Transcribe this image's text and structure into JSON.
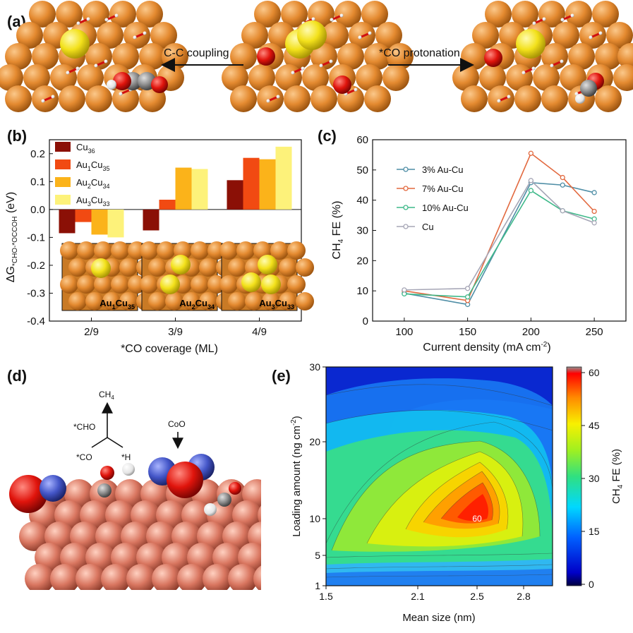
{
  "panel_a": {
    "label": "(a)",
    "arrow_left_label": "C-C coupling",
    "arrow_right_label": "*CO protonation"
  },
  "panel_d": {
    "label": "(d)",
    "ch4": "CH",
    "ch4_sub": "4",
    "cho": "*CHO",
    "co": "*CO",
    "h": "*H",
    "coo": "CoO"
  },
  "chart_data": [
    {
      "id": "b",
      "panel_label": "(b)",
      "type": "bar",
      "xlabel": "*CO coverage (ML)",
      "ylabel_base": "ΔG",
      "ylabel_sub": "*CHO-*OCCOH",
      "ylabel_unit": " (eV)",
      "categories": [
        "2/9",
        "3/9",
        "4/9"
      ],
      "ylim": [
        -0.4,
        0.25
      ],
      "yticks": [
        "0.2",
        "0.1",
        "0.0",
        "-0.1",
        "-0.2",
        "-0.3",
        "-0.4"
      ],
      "ytick_values": [
        0.2,
        0.1,
        0.0,
        -0.1,
        -0.2,
        -0.3,
        -0.4
      ],
      "series": [
        {
          "name_base": "Cu",
          "name_sub": "36",
          "color": "#8b1006",
          "values": [
            -0.085,
            -0.075,
            0.105
          ]
        },
        {
          "name_base": "Au",
          "name_sub": "1",
          "name_base2": "Cu",
          "name_sub2": "35",
          "color": "#f14a12",
          "values": [
            -0.045,
            0.035,
            0.185
          ]
        },
        {
          "name_base": "Au",
          "name_sub": "2",
          "name_base2": "Cu",
          "name_sub2": "34",
          "color": "#fbb31a",
          "values": [
            -0.09,
            0.15,
            0.18
          ]
        },
        {
          "name_base": "Au",
          "name_sub": "3",
          "name_base2": "Cu",
          "name_sub2": "33",
          "color": "#fdf27a",
          "values": [
            -0.1,
            0.145,
            0.225
          ]
        }
      ],
      "insets": [
        {
          "base": "Au",
          "sub": "1",
          "base2": "Cu",
          "sub2": "35"
        },
        {
          "base": "Au",
          "sub": "2",
          "base2": "Cu",
          "sub2": "34"
        },
        {
          "base": "Au",
          "sub": "3",
          "base2": "Cu",
          "sub2": "33"
        }
      ]
    },
    {
      "id": "c",
      "panel_label": "(c)",
      "type": "line",
      "xlabel_base": "Current density (mA cm",
      "xlabel_sup": "-2",
      "xlabel_end": ")",
      "ylabel_base": "CH",
      "ylabel_sub": "4",
      "ylabel_end": " FE (%)",
      "x": [
        100,
        150,
        200,
        225,
        250
      ],
      "xlim": [
        75,
        275
      ],
      "ylim": [
        0,
        60
      ],
      "xticks": [
        "100",
        "150",
        "200",
        "250"
      ],
      "xtick_values": [
        100,
        150,
        200,
        250
      ],
      "yticks": [
        "0",
        "10",
        "20",
        "30",
        "40",
        "50",
        "60"
      ],
      "ytick_values": [
        0,
        10,
        20,
        30,
        40,
        50,
        60
      ],
      "series": [
        {
          "name": "3% Au-Cu",
          "color": "#4f8ea6",
          "values": [
            9.2,
            5.5,
            45.8,
            45.0,
            42.5
          ]
        },
        {
          "name": "7% Au-Cu",
          "color": "#e2693f",
          "values": [
            10.0,
            6.8,
            55.5,
            47.5,
            36.3
          ]
        },
        {
          "name": "10% Au-Cu",
          "color": "#3fb98a",
          "values": [
            9.0,
            8.0,
            43.2,
            36.5,
            33.8
          ]
        },
        {
          "name": "Cu",
          "color": "#a6a6b6",
          "values": [
            10.3,
            10.8,
            46.5,
            36.5,
            32.5
          ]
        }
      ]
    },
    {
      "id": "e",
      "panel_label": "(e)",
      "type": "heatmap",
      "xlabel": "Mean size (nm)",
      "ylabel_base": "Loading amount (ng cm",
      "ylabel_sup": "-2",
      "ylabel_end": ")",
      "xticks": [
        "1.5",
        "2.1",
        "2.5",
        "2.8"
      ],
      "xtick_values": [
        1.5,
        2.1,
        2.5,
        2.8
      ],
      "yticks": [
        "30",
        "20",
        "10",
        "5",
        "1"
      ],
      "ytick_values": [
        30,
        20,
        10,
        5,
        1
      ],
      "peak": {
        "x": 2.5,
        "y": 10,
        "label": "60"
      },
      "colorbar": {
        "label_base": "CH",
        "label_sub": "4",
        "label_end": " FE (%)",
        "ticks": [
          "60",
          "45",
          "30",
          "15",
          "0"
        ],
        "tick_values": [
          60,
          45,
          30,
          15,
          0
        ]
      }
    }
  ],
  "colors": {
    "cu_atom": "#e38a2e",
    "au_atom": "#f3e21d",
    "o_atom": "#e0140c",
    "c_atom": "#8d8d8d",
    "h_atom": "#ffffff",
    "co_atom": "#3e4fbf",
    "cu_slab_d": "#d7735f"
  }
}
